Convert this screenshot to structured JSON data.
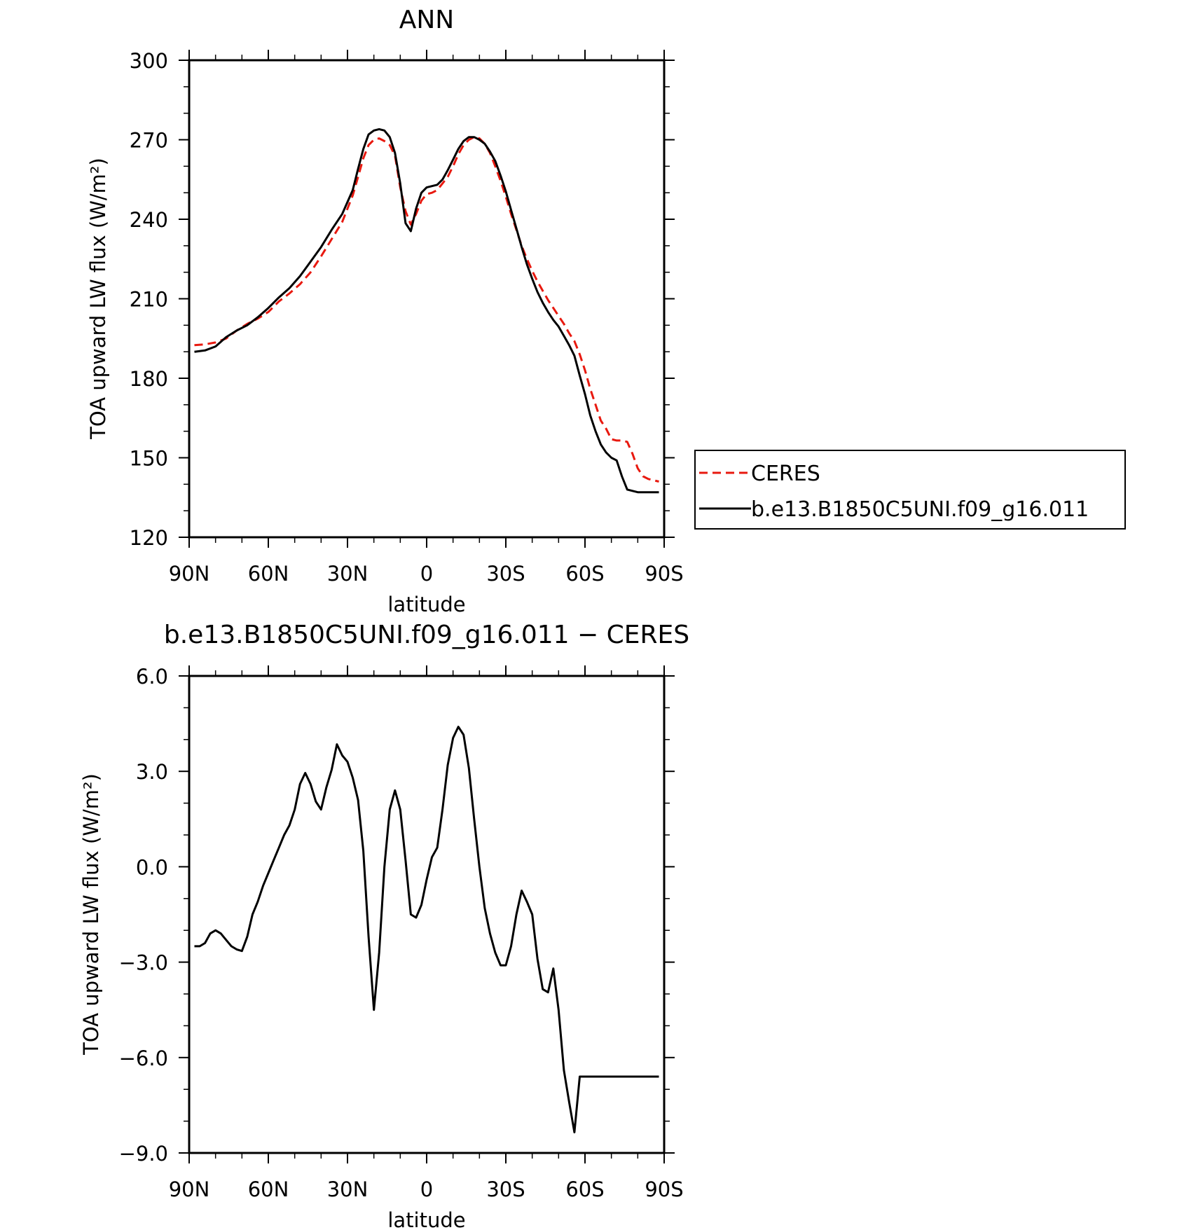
{
  "chart_data": [
    {
      "type": "line",
      "title": "ANN",
      "xlabel": "latitude",
      "ylabel": "TOA upward LW flux (W/m²)",
      "xlim": [
        90,
        -90
      ],
      "ylim": [
        120,
        300
      ],
      "x_ticks": [
        {
          "value": 90,
          "label": "90N"
        },
        {
          "value": 60,
          "label": "60N"
        },
        {
          "value": 30,
          "label": "30N"
        },
        {
          "value": 0,
          "label": "0"
        },
        {
          "value": -30,
          "label": "30S"
        },
        {
          "value": -60,
          "label": "60S"
        },
        {
          "value": -90,
          "label": "90S"
        }
      ],
      "y_ticks": [
        {
          "value": 300,
          "label": "300"
        },
        {
          "value": 270,
          "label": "270"
        },
        {
          "value": 240,
          "label": "240"
        },
        {
          "value": 210,
          "label": "210"
        },
        {
          "value": 180,
          "label": "180"
        },
        {
          "value": 150,
          "label": "150"
        },
        {
          "value": 120,
          "label": "120"
        }
      ],
      "legend": {
        "placement": "right",
        "entries": [
          {
            "label": "CERES",
            "color": "#e8190f",
            "style": "dashed"
          },
          {
            "label": "b.e13.B1850C5UNI.f09_g16.011",
            "color": "#000000",
            "style": "solid"
          }
        ]
      },
      "series": [
        {
          "name": "CERES",
          "color": "#e8190f",
          "dash": true,
          "x": [
            88,
            84,
            80,
            76,
            72,
            68,
            64,
            60,
            56,
            52,
            48,
            44,
            40,
            36,
            32,
            28,
            26,
            24,
            22,
            20,
            18,
            16,
            14,
            12,
            10,
            8,
            6,
            4,
            2,
            0,
            -2,
            -4,
            -6,
            -8,
            -10,
            -12,
            -14,
            -16,
            -18,
            -20,
            -22,
            -24,
            -26,
            -28,
            -30,
            -32,
            -34,
            -36,
            -38,
            -40,
            -42,
            -44,
            -46,
            -48,
            -50,
            -52,
            -54,
            -56,
            -58,
            -60,
            -62,
            -64,
            -66,
            -68,
            -70,
            -72,
            -74,
            -76,
            -78,
            -80,
            -82,
            -84,
            -86,
            -88
          ],
          "y": [
            192.5,
            192.8,
            193.5,
            195.0,
            198.0,
            200.5,
            202.5,
            205.0,
            209.0,
            212.0,
            215.5,
            220.0,
            226.0,
            232.5,
            239.0,
            249.0,
            256.0,
            263.0,
            268.0,
            270.0,
            270.5,
            269.5,
            268.0,
            264.0,
            252.0,
            243.0,
            238.0,
            242.0,
            247.0,
            249.5,
            250.0,
            251.0,
            253.5,
            256.0,
            260.0,
            264.5,
            268.0,
            270.0,
            271.0,
            270.5,
            268.5,
            265.0,
            260.0,
            254.5,
            248.5,
            242.0,
            236.0,
            230.0,
            225.0,
            220.5,
            216.5,
            213.0,
            209.5,
            206.5,
            203.5,
            200.5,
            197.0,
            194.0,
            189.0,
            183.0,
            176.0,
            170.0,
            164.0,
            161.0,
            157.0,
            156.5,
            156.5,
            156.0,
            151.5,
            146.0,
            143.0,
            142.0,
            141.5,
            141.0
          ]
        },
        {
          "name": "b.e13.B1850C5UNI.f09_g16.011",
          "color": "#000000",
          "dash": false,
          "x": [
            88,
            84,
            80,
            76,
            72,
            68,
            64,
            60,
            56,
            52,
            48,
            44,
            40,
            36,
            32,
            28,
            26,
            24,
            22,
            20,
            18,
            16,
            14,
            12,
            10,
            8,
            6,
            4,
            2,
            0,
            -2,
            -4,
            -6,
            -8,
            -10,
            -12,
            -14,
            -16,
            -18,
            -20,
            -22,
            -24,
            -26,
            -28,
            -30,
            -32,
            -34,
            -36,
            -38,
            -40,
            -42,
            -44,
            -46,
            -48,
            -50,
            -52,
            -54,
            -56,
            -58,
            -60,
            -62,
            -64,
            -66,
            -68,
            -70,
            -72,
            -74,
            -76,
            -78,
            -80,
            -82,
            -84,
            -86,
            -88
          ],
          "y": [
            190.0,
            190.5,
            192.0,
            195.5,
            198.0,
            200.0,
            203.0,
            206.5,
            210.5,
            214.0,
            218.5,
            224.0,
            229.5,
            236.0,
            242.0,
            251.0,
            259.0,
            266.5,
            272.0,
            273.5,
            274.0,
            273.5,
            271.0,
            265.0,
            253.5,
            238.5,
            235.5,
            244.0,
            250.0,
            252.0,
            252.5,
            253.0,
            255.0,
            258.5,
            262.5,
            266.5,
            269.5,
            271.0,
            271.0,
            270.0,
            268.5,
            265.5,
            262.0,
            256.5,
            250.5,
            243.5,
            236.5,
            229.5,
            223.0,
            217.5,
            212.5,
            208.5,
            205.0,
            202.0,
            199.5,
            196.0,
            192.5,
            188.5,
            181.0,
            174.0,
            166.0,
            160.0,
            155.0,
            152.0,
            150.0,
            149.0,
            143.0,
            138.0,
            137.5,
            137.0,
            137.0,
            137.0,
            137.0,
            137.0
          ]
        }
      ]
    },
    {
      "type": "line",
      "title": "b.e13.B1850C5UNI.f09_g16.011 − CERES",
      "xlabel": "latitude",
      "ylabel": "TOA upward LW flux (W/m²)",
      "xlim": [
        90,
        -90
      ],
      "ylim": [
        -9.0,
        6.0
      ],
      "x_ticks": [
        {
          "value": 90,
          "label": "90N"
        },
        {
          "value": 60,
          "label": "60N"
        },
        {
          "value": 30,
          "label": "30N"
        },
        {
          "value": 0,
          "label": "0"
        },
        {
          "value": -30,
          "label": "30S"
        },
        {
          "value": -60,
          "label": "60S"
        },
        {
          "value": -90,
          "label": "90S"
        }
      ],
      "y_ticks": [
        {
          "value": 6.0,
          "label": "6.0"
        },
        {
          "value": 3.0,
          "label": "3.0"
        },
        {
          "value": 0.0,
          "label": "0.0"
        },
        {
          "value": -3.0,
          "label": "−3.0"
        },
        {
          "value": -6.0,
          "label": "−6.0"
        },
        {
          "value": -9.0,
          "label": "−9.0"
        }
      ],
      "series": [
        {
          "color": "#000000",
          "dash": false,
          "x": [
            88,
            86,
            84,
            82,
            80,
            78,
            76,
            74,
            72,
            70,
            68,
            66,
            64,
            62,
            60,
            58,
            56,
            54,
            52,
            50,
            48,
            46,
            44,
            42,
            40,
            38,
            36,
            34,
            32,
            30,
            28,
            26,
            24,
            22,
            20,
            18,
            16,
            14,
            12,
            10,
            8,
            6,
            4,
            2,
            0,
            -2,
            -4,
            -6,
            -8,
            -10,
            -12,
            -14,
            -16,
            -18,
            -20,
            -22,
            -24,
            -26,
            -28,
            -30,
            -32,
            -34,
            -36,
            -38,
            -40,
            -42,
            -44,
            -46,
            -48,
            -50,
            -52,
            -54,
            -56,
            -58,
            -60,
            -62,
            -64,
            -66,
            -68,
            -70,
            -72,
            -74,
            -76,
            -78,
            -80,
            -82,
            -84,
            -86,
            -88
          ],
          "y": [
            -2.5,
            -2.5,
            -2.4,
            -2.1,
            -2.0,
            -2.1,
            -2.3,
            -2.5,
            -2.6,
            -2.65,
            -2.2,
            -1.5,
            -1.1,
            -0.6,
            -0.2,
            0.2,
            0.6,
            1.0,
            1.3,
            1.8,
            2.6,
            2.95,
            2.6,
            2.05,
            1.8,
            2.5,
            3.05,
            3.85,
            3.5,
            3.3,
            2.8,
            2.1,
            0.5,
            -2.2,
            -4.5,
            -2.7,
            0.0,
            1.8,
            2.4,
            1.8,
            0.2,
            -1.5,
            -1.6,
            -1.2,
            -0.4,
            0.3,
            0.6,
            1.8,
            3.2,
            4.05,
            4.4,
            4.15,
            3.1,
            1.5,
            0.0,
            -1.3,
            -2.1,
            -2.7,
            -3.1,
            -3.1,
            -2.5,
            -1.5,
            -0.75,
            -1.1,
            -1.5,
            -2.9,
            -3.85,
            -3.95,
            -3.2,
            -4.5,
            -6.4,
            -7.4,
            -8.35,
            -6.6,
            -6.6,
            -6.6,
            -6.6,
            -6.6,
            -6.6,
            -6.6,
            -6.6,
            -6.6,
            -6.6,
            -6.6,
            -6.6,
            -6.6,
            -6.6,
            -6.6,
            -6.6
          ]
        }
      ]
    }
  ]
}
